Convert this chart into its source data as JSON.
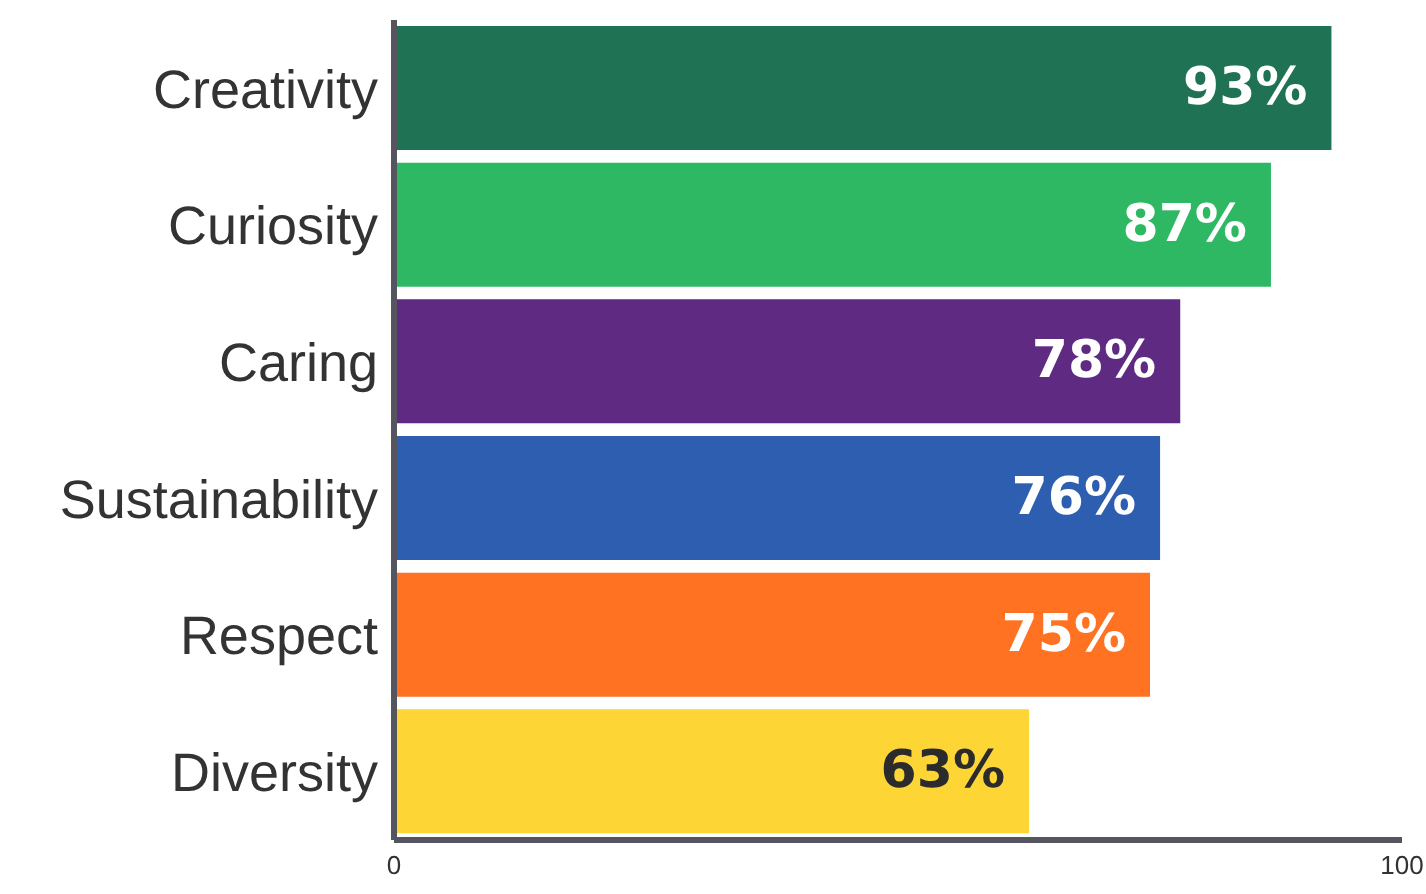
{
  "chart_data": {
    "type": "bar",
    "orientation": "horizontal",
    "categories": [
      "Creativity",
      "Curiosity",
      "Caring",
      "Sustainability",
      "Respect",
      "Diversity"
    ],
    "values": [
      93,
      87,
      78,
      76,
      75,
      63
    ],
    "value_labels": [
      "93%",
      "87%",
      "78%",
      "76%",
      "75%",
      "63%"
    ],
    "colors": [
      "#1f7354",
      "#2fb864",
      "#5e2a82",
      "#2d5eb0",
      "#fe7222",
      "#fdd535"
    ],
    "xlim": [
      0,
      100
    ],
    "xticks": [
      0,
      100
    ],
    "grid": false
  }
}
